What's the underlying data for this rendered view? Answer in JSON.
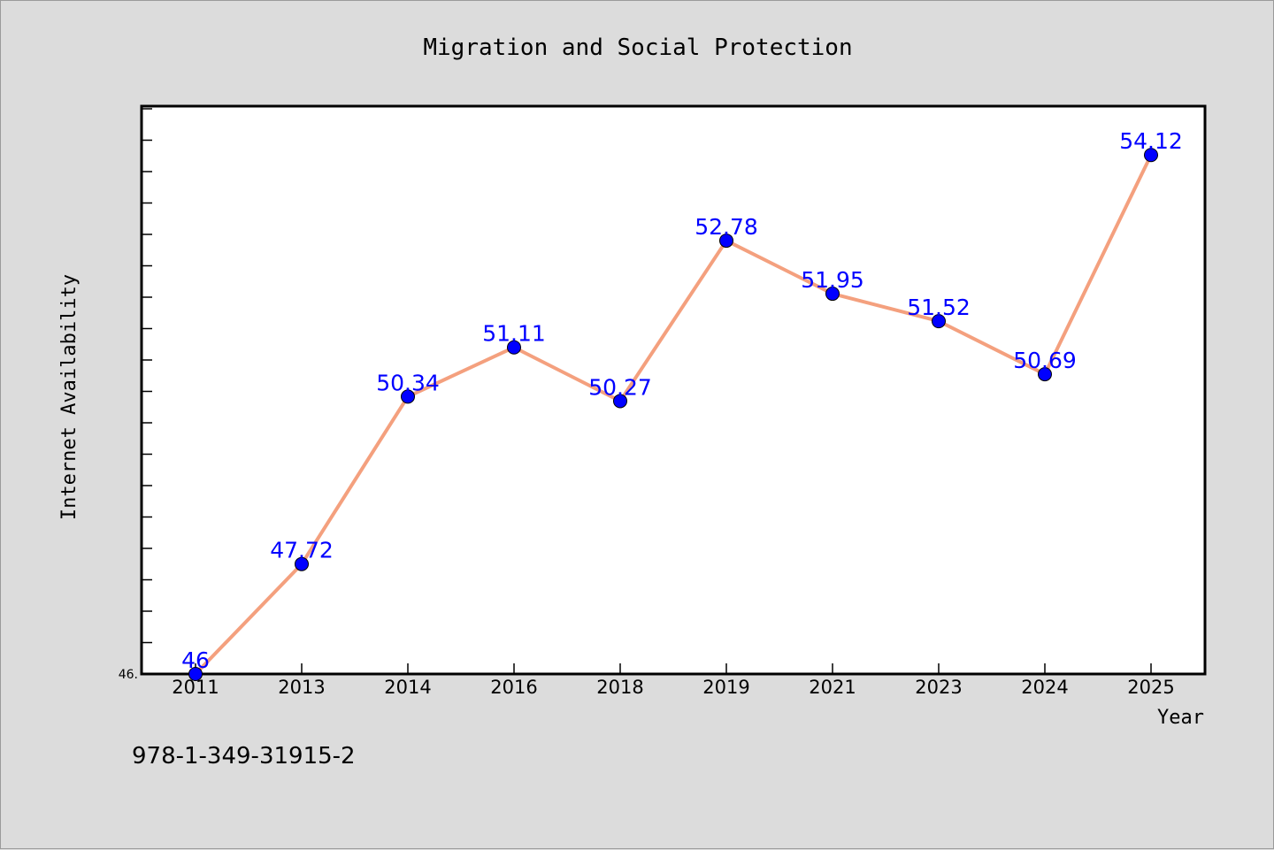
{
  "chart_data": {
    "type": "line",
    "title": "Migration and Social Protection",
    "xlabel": "Year",
    "ylabel": "Internet Availability",
    "categories": [
      "2011",
      "2013",
      "2014",
      "2016",
      "2018",
      "2019",
      "2021",
      "2023",
      "2024",
      "2025"
    ],
    "series": [
      {
        "values": [
          46.0,
          47.72,
          50.34,
          51.11,
          50.27,
          52.78,
          51.95,
          51.52,
          50.69,
          54.12
        ],
        "labels": [
          "46",
          "47.72",
          "50.34",
          "51.11",
          "50.27",
          "52.78",
          "51.95",
          "51.52",
          "50.69",
          "54.12"
        ],
        "line_color": "#f4a07e",
        "marker_color": "#0000ff"
      }
    ],
    "ylim": [
      46.0,
      55.0
    ],
    "yticks_shown": [
      "46."
    ],
    "grid": false,
    "legend": "none"
  },
  "footer": {
    "identifier": "978-1-349-31915-2"
  }
}
